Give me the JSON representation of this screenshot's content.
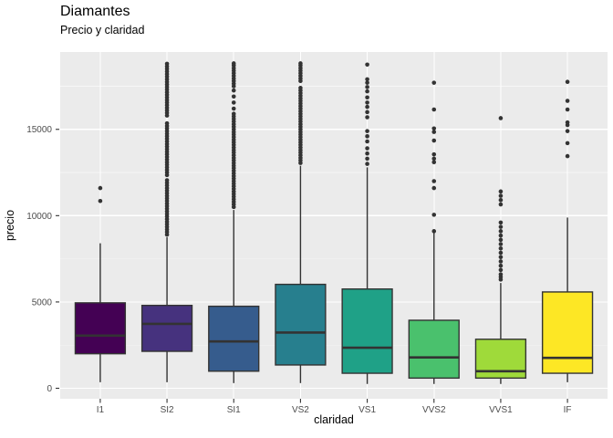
{
  "header": {
    "title": "Diamantes",
    "subtitle": "Precio y claridad"
  },
  "theme": {
    "panel_bg": "#EBEBEB",
    "grid_major": "#FFFFFF",
    "grid_minor": "rgba(255,255,255,0.55)",
    "box_outline": "#333333",
    "outlier_color": "#333333",
    "tick_mark_color": "#333333",
    "tick_label_color": "#4D4D4D"
  },
  "chart_data": {
    "type": "boxplot",
    "title": "Diamantes",
    "subtitle": "Precio y claridad",
    "xlabel": "claridad",
    "ylabel": "precio",
    "ylim": [
      -608,
      19480
    ],
    "y_major_ticks": [
      0,
      5000,
      10000,
      15000
    ],
    "y_minor_ticks": [
      2500,
      7500,
      12500,
      17500
    ],
    "grid": true,
    "legend": "none",
    "categories": [
      "I1",
      "SI2",
      "SI1",
      "VS2",
      "VS1",
      "VVS2",
      "VVS1",
      "IF"
    ],
    "series": [
      {
        "label": "I1",
        "color": "#440154",
        "whisker_low": 350,
        "q1": 2000,
        "median": 3050,
        "q3": 4950,
        "whisker_high": 8400,
        "outliers": [
          10850,
          11600
        ]
      },
      {
        "label": "SI2",
        "color": "#46327E",
        "whisker_low": 350,
        "q1": 2140,
        "median": 3730,
        "q3": 4800,
        "whisker_high": 8750,
        "outliers": [
          8900,
          9050,
          9200,
          9350,
          9500,
          9650,
          9800,
          9950,
          10100,
          10250,
          10400,
          10550,
          10700,
          10850,
          11000,
          11150,
          11300,
          11450,
          11600,
          11750,
          11900,
          12050,
          12350,
          12500,
          12650,
          12800,
          12950,
          13100,
          13250,
          13400,
          13550,
          13700,
          13850,
          14000,
          14150,
          14300,
          14450,
          14600,
          14750,
          14900,
          15050,
          15200,
          15350,
          15800,
          15950,
          16100,
          16250,
          16400,
          16550,
          16700,
          16850,
          17000,
          17150,
          17300,
          17450,
          17600,
          17750,
          17900,
          18050,
          18200,
          18350,
          18500,
          18650,
          18800
        ]
      },
      {
        "label": "SI1",
        "color": "#365C8D",
        "whisker_low": 300,
        "q1": 990,
        "median": 2710,
        "q3": 4750,
        "whisker_high": 10330,
        "outliers": [
          10500,
          10650,
          10800,
          10950,
          11100,
          11250,
          11400,
          11550,
          11700,
          11850,
          12000,
          12150,
          12300,
          12450,
          12600,
          12750,
          12900,
          13050,
          13200,
          13350,
          13500,
          13650,
          13800,
          13950,
          14100,
          14250,
          14400,
          14550,
          14700,
          14850,
          15000,
          15150,
          15300,
          15450,
          15600,
          15750,
          15900,
          16200,
          16550,
          16900,
          17250,
          17500,
          17650,
          17800,
          17950,
          18100,
          18250,
          18400,
          18550,
          18700,
          18820
        ]
      },
      {
        "label": "VS2",
        "color": "#277F8E",
        "whisker_low": 300,
        "q1": 1350,
        "median": 3230,
        "q3": 6020,
        "whisker_high": 12890,
        "outliers": [
          13050,
          13200,
          13350,
          13500,
          13650,
          13800,
          13950,
          14100,
          14250,
          14400,
          14550,
          14700,
          14850,
          15000,
          15150,
          15300,
          15450,
          15600,
          15750,
          15900,
          16050,
          16200,
          16350,
          16500,
          16650,
          16800,
          16950,
          17100,
          17250,
          17400,
          17800,
          17950,
          18100,
          18250,
          18400,
          18550,
          18700,
          18820
        ]
      },
      {
        "label": "VS1",
        "color": "#1FA187",
        "whisker_low": 250,
        "q1": 870,
        "median": 2350,
        "q3": 5750,
        "whisker_high": 12800,
        "outliers": [
          13000,
          13300,
          13600,
          13900,
          14300,
          14600,
          14900,
          15700,
          16000,
          16300,
          16550,
          16850,
          17200,
          17450,
          17700,
          17900,
          18750
        ]
      },
      {
        "label": "VVS2",
        "color": "#4AC16D",
        "whisker_low": 250,
        "q1": 590,
        "median": 1790,
        "q3": 3940,
        "whisker_high": 9010,
        "outliers": [
          9100,
          10050,
          11600,
          12000,
          13100,
          13300,
          13550,
          14350,
          14850,
          15050,
          16150,
          17700
        ]
      },
      {
        "label": "VVS1",
        "color": "#9FDA3A",
        "whisker_low": 250,
        "q1": 590,
        "median": 990,
        "q3": 2840,
        "whisker_high": 6100,
        "outliers": [
          6300,
          6450,
          6600,
          6850,
          7100,
          7350,
          7600,
          7850,
          8100,
          8350,
          8600,
          8850,
          9100,
          9350,
          9600,
          10650,
          10900,
          11150,
          11400,
          15650
        ]
      },
      {
        "label": "IF",
        "color": "#FDE725",
        "whisker_low": 350,
        "q1": 870,
        "median": 1760,
        "q3": 5580,
        "whisker_high": 9890,
        "outliers": [
          13450,
          14200,
          14900,
          15250,
          15400,
          16150,
          16650,
          17750
        ]
      }
    ]
  }
}
